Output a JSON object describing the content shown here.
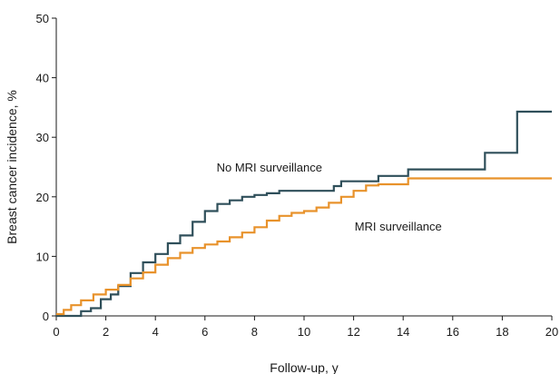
{
  "chart_data": {
    "type": "line",
    "step": true,
    "title": "",
    "xlabel": "Follow-up, y",
    "ylabel": "Breast cancer incidence, %",
    "xlim": [
      0,
      20
    ],
    "ylim": [
      0,
      50
    ],
    "xticks": [
      0,
      2,
      4,
      6,
      8,
      10,
      12,
      14,
      16,
      18,
      20
    ],
    "yticks": [
      0,
      10,
      20,
      30,
      40,
      50
    ],
    "grid": false,
    "legend": "none",
    "series": [
      {
        "name": "No MRI surveillance",
        "color": "#2f4f5a",
        "points": [
          [
            0,
            0
          ],
          [
            1.0,
            0
          ],
          [
            1.0,
            0.8
          ],
          [
            1.4,
            1.3
          ],
          [
            1.8,
            2.8
          ],
          [
            2.2,
            3.6
          ],
          [
            2.5,
            5.0
          ],
          [
            3.0,
            7.2
          ],
          [
            3.5,
            9.0
          ],
          [
            4.0,
            10.4
          ],
          [
            4.5,
            12.2
          ],
          [
            5.0,
            13.5
          ],
          [
            5.5,
            15.8
          ],
          [
            6.0,
            17.6
          ],
          [
            6.5,
            18.8
          ],
          [
            7.0,
            19.4
          ],
          [
            7.5,
            20.0
          ],
          [
            8.0,
            20.3
          ],
          [
            8.5,
            20.6
          ],
          [
            9.0,
            21.0
          ],
          [
            11.2,
            21.0
          ],
          [
            11.2,
            21.8
          ],
          [
            11.5,
            22.6
          ],
          [
            13.0,
            22.6
          ],
          [
            13.0,
            23.5
          ],
          [
            14.2,
            23.5
          ],
          [
            14.2,
            24.6
          ],
          [
            17.3,
            24.6
          ],
          [
            17.3,
            27.4
          ],
          [
            18.6,
            27.4
          ],
          [
            18.6,
            34.3
          ],
          [
            20.0,
            34.3
          ]
        ]
      },
      {
        "name": "MRI surveillance",
        "color": "#e8922b",
        "points": [
          [
            0,
            0.3
          ],
          [
            0.3,
            1.0
          ],
          [
            0.6,
            1.8
          ],
          [
            1.0,
            2.6
          ],
          [
            1.5,
            3.6
          ],
          [
            2.0,
            4.4
          ],
          [
            2.5,
            5.2
          ],
          [
            3.0,
            6.3
          ],
          [
            3.5,
            7.3
          ],
          [
            4.0,
            8.6
          ],
          [
            4.5,
            9.7
          ],
          [
            5.0,
            10.6
          ],
          [
            5.5,
            11.4
          ],
          [
            6.0,
            12.0
          ],
          [
            6.5,
            12.5
          ],
          [
            7.0,
            13.2
          ],
          [
            7.5,
            14.0
          ],
          [
            8.0,
            14.9
          ],
          [
            8.5,
            16.0
          ],
          [
            9.0,
            16.8
          ],
          [
            9.5,
            17.3
          ],
          [
            10.0,
            17.6
          ],
          [
            10.5,
            18.2
          ],
          [
            11.0,
            19.0
          ],
          [
            11.5,
            20.0
          ],
          [
            12.0,
            21.0
          ],
          [
            12.5,
            21.9
          ],
          [
            13.0,
            22.1
          ],
          [
            14.2,
            22.1
          ],
          [
            14.2,
            23.1
          ],
          [
            20.0,
            23.1
          ]
        ]
      }
    ],
    "annotations": [
      {
        "text": "No MRI surveillance",
        "x": 8.6,
        "y": 24.2
      },
      {
        "text": "MRI surveillance",
        "x": 13.8,
        "y": 14.3
      }
    ]
  }
}
